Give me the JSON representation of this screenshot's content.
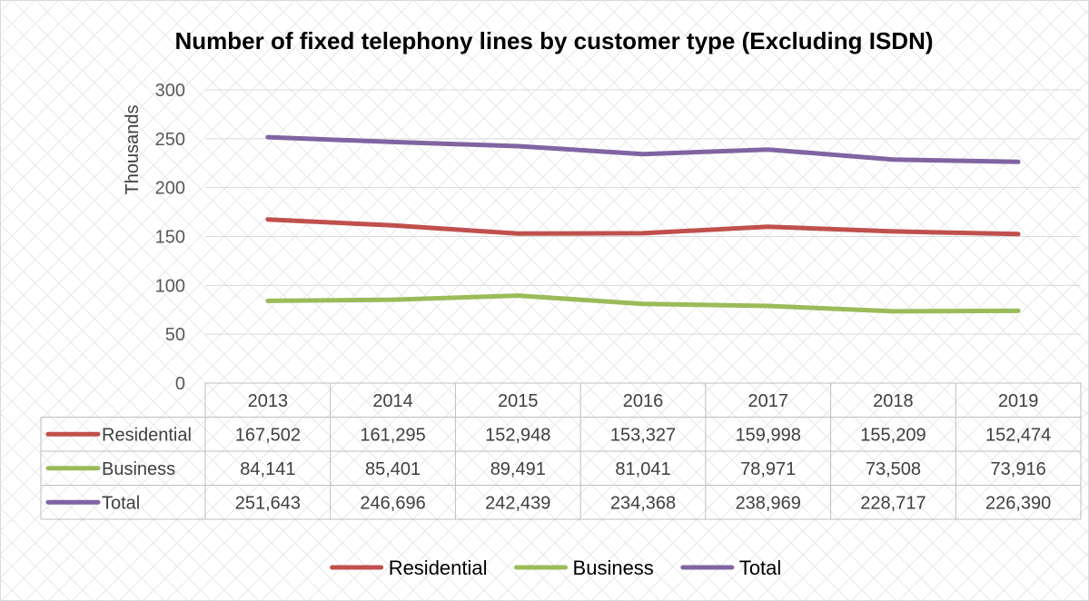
{
  "chart_data": {
    "type": "line",
    "title": "Number of fixed telephony lines by customer type (Excluding ISDN)",
    "ylabel": "Thousands",
    "xlabel": "",
    "ylim": [
      0,
      300
    ],
    "yticks": [
      0,
      50,
      100,
      150,
      200,
      250,
      300
    ],
    "categories": [
      "2013",
      "2014",
      "2015",
      "2016",
      "2017",
      "2018",
      "2019"
    ],
    "grid": true,
    "legend": "bottom",
    "data_table": true,
    "series": [
      {
        "name": "Residential",
        "color": "#c0504d",
        "values": [
          167.502,
          161.295,
          152.948,
          153.327,
          159.998,
          155.209,
          152.474
        ],
        "labels": [
          "167,502",
          "161,295",
          "152,948",
          "153,327",
          "159,998",
          "155,209",
          "152,474"
        ]
      },
      {
        "name": "Business",
        "color": "#9bbb59",
        "values": [
          84.141,
          85.401,
          89.491,
          81.041,
          78.971,
          73.508,
          73.916
        ],
        "labels": [
          "84,141",
          "85,401",
          "89,491",
          "81,041",
          "78,971",
          "73,508",
          "73,916"
        ]
      },
      {
        "name": "Total",
        "color": "#8064a2",
        "values": [
          251.643,
          246.696,
          242.439,
          234.368,
          238.969,
          228.717,
          226.39
        ],
        "labels": [
          "251,643",
          "246,696",
          "242,439",
          "234,368",
          "238,969",
          "228,717",
          "226,390"
        ]
      }
    ]
  }
}
